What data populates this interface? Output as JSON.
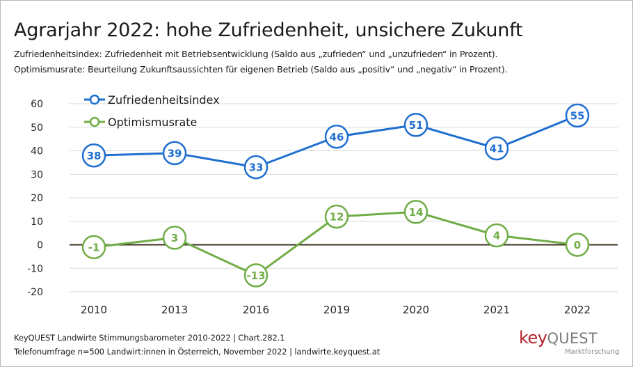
{
  "title": "Agrarjahr 2022: hohe Zufriedenheit, unsichere Zukunft",
  "subtitle_line1": "Zufriedenheitsindex: Zufriedenheit mit Betriebsentwicklung (Saldo aus „zufrieden“ und „unzufrieden“ in Prozent).",
  "subtitle_line2": "Optimismusrate: Beurteilung Zukunftsaussichten für eigenen Betrieb (Saldo aus „positiv“ und „negativ“ in Prozent).",
  "footer_line1": "KeyQUEST Landwirte Stimmungsbarometer 2010-2022  | Chart.282.1",
  "footer_line2": "Telefonumfrage n=500 Landwirt:innen in Österreich, November 2022 | landwirte.keyquest.at",
  "logo": {
    "key": "key",
    "quest": "QUEST",
    "sub": "Marktforschung"
  },
  "chart_data": {
    "type": "line",
    "categories": [
      "2010",
      "2013",
      "2016",
      "2019",
      "2020",
      "2021",
      "2022"
    ],
    "series": [
      {
        "name": "Zufriedenheitsindex",
        "color": "#1f6fd1",
        "values": [
          38,
          39,
          33,
          46,
          51,
          41,
          55
        ]
      },
      {
        "name": "Optimismusrate",
        "color": "#70ad47",
        "values": [
          -1,
          3,
          -13,
          12,
          14,
          4,
          0
        ]
      }
    ],
    "ylim": [
      -20,
      60
    ],
    "yticks": [
      60,
      50,
      40,
      30,
      20,
      10,
      0,
      -10,
      -20
    ],
    "grid": true,
    "legend": "top-left",
    "zero_line_color": "#3a2f1f"
  }
}
